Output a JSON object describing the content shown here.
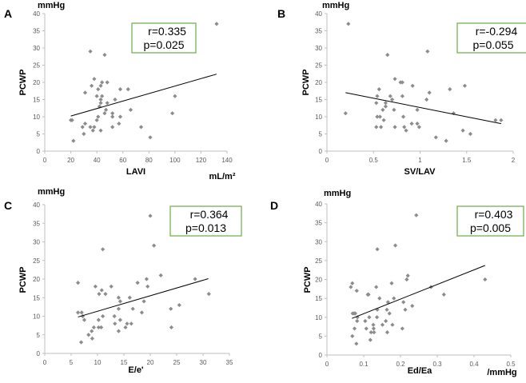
{
  "chart_data": [
    {
      "type": "scatter",
      "panel": "A",
      "y_unit": "mmHg",
      "xlabel": "LAVI",
      "x_unit": "mL/m²",
      "ylabel": "PCWP",
      "xlim": [
        0,
        140
      ],
      "ylim": [
        0,
        40
      ],
      "xticks": [
        "0",
        "20",
        "40",
        "60",
        "80",
        "100",
        "120",
        "140"
      ],
      "yticks": [
        "0",
        "5",
        "10",
        "15",
        "20",
        "25",
        "30",
        "35",
        "40"
      ],
      "stats": {
        "r": "r=0.335",
        "p": "p=0.025"
      },
      "trendline": [
        [
          20,
          10.2
        ],
        [
          132,
          22.4
        ]
      ],
      "points": [
        [
          132,
          37
        ],
        [
          35,
          29
        ],
        [
          46,
          28
        ],
        [
          38,
          21
        ],
        [
          36,
          19
        ],
        [
          44,
          20
        ],
        [
          48,
          20
        ],
        [
          41,
          18
        ],
        [
          43,
          19
        ],
        [
          58,
          18
        ],
        [
          64,
          18
        ],
        [
          31,
          17
        ],
        [
          40,
          16
        ],
        [
          44,
          16
        ],
        [
          100,
          16
        ],
        [
          43,
          15
        ],
        [
          54,
          15
        ],
        [
          43,
          14
        ],
        [
          48,
          14
        ],
        [
          42,
          13
        ],
        [
          47,
          12
        ],
        [
          66,
          12
        ],
        [
          46,
          11
        ],
        [
          52,
          11
        ],
        [
          98,
          11
        ],
        [
          41,
          10
        ],
        [
          52,
          10
        ],
        [
          58,
          10
        ],
        [
          20,
          9
        ],
        [
          21,
          9
        ],
        [
          40,
          9
        ],
        [
          31,
          8
        ],
        [
          57,
          8
        ],
        [
          29,
          7
        ],
        [
          35,
          7
        ],
        [
          38,
          7
        ],
        [
          52,
          7
        ],
        [
          74,
          7
        ],
        [
          37,
          6
        ],
        [
          43,
          6
        ],
        [
          30,
          5
        ],
        [
          81,
          4
        ],
        [
          22,
          3
        ]
      ]
    },
    {
      "type": "scatter",
      "panel": "B",
      "y_unit": "mmHg",
      "xlabel": "SV/LAV",
      "x_unit": "",
      "ylabel": "PCWP",
      "xlim": [
        0,
        2
      ],
      "ylim": [
        0,
        40
      ],
      "xticks": [
        "0",
        "0.5",
        "1",
        "1.5",
        "2"
      ],
      "yticks": [
        "0",
        "5",
        "10",
        "15",
        "20",
        "25",
        "30",
        "35",
        "40"
      ],
      "stats": {
        "r": "r=-0.294",
        "p": "p=0.055"
      },
      "trendline": [
        [
          0.2,
          17
        ],
        [
          1.87,
          8
        ]
      ],
      "points": [
        [
          0.23,
          37
        ],
        [
          1.08,
          29
        ],
        [
          0.65,
          28
        ],
        [
          0.73,
          21
        ],
        [
          0.79,
          20
        ],
        [
          0.81,
          20
        ],
        [
          0.92,
          19
        ],
        [
          1.48,
          19
        ],
        [
          0.56,
          18
        ],
        [
          1.32,
          18
        ],
        [
          1.1,
          17
        ],
        [
          0.54,
          16
        ],
        [
          0.68,
          16
        ],
        [
          0.81,
          16
        ],
        [
          0.7,
          15
        ],
        [
          1.07,
          15
        ],
        [
          0.53,
          14
        ],
        [
          0.63,
          14
        ],
        [
          0.63,
          13
        ],
        [
          0.6,
          12
        ],
        [
          0.72,
          12
        ],
        [
          0.97,
          12
        ],
        [
          0.2,
          11
        ],
        [
          1.36,
          11
        ],
        [
          0.54,
          10
        ],
        [
          0.57,
          10
        ],
        [
          0.82,
          10
        ],
        [
          0.61,
          9
        ],
        [
          1.81,
          9
        ],
        [
          1.87,
          9
        ],
        [
          0.91,
          8
        ],
        [
          0.97,
          8
        ],
        [
          0.53,
          7
        ],
        [
          0.58,
          7
        ],
        [
          0.73,
          7
        ],
        [
          0.83,
          7
        ],
        [
          0.99,
          7
        ],
        [
          0.85,
          6
        ],
        [
          1.46,
          6
        ],
        [
          1.54,
          5
        ],
        [
          1.17,
          4
        ],
        [
          1.28,
          3
        ]
      ]
    },
    {
      "type": "scatter",
      "panel": "C",
      "y_unit": "mmHg",
      "xlabel": "E/e'",
      "x_unit": "",
      "ylabel": "PCWP",
      "xlim": [
        0,
        35
      ],
      "ylim": [
        0,
        40
      ],
      "xticks": [
        "0",
        "5",
        "10",
        "15",
        "20",
        "25",
        "30",
        "35"
      ],
      "yticks": [
        "0",
        "5",
        "10",
        "15",
        "20",
        "25",
        "30",
        "35",
        "40"
      ],
      "stats": {
        "r": "r=0.364",
        "p": "p=0.013"
      },
      "trendline": [
        [
          6.3,
          9.8
        ],
        [
          31,
          20.1
        ]
      ],
      "points": [
        [
          20,
          37
        ],
        [
          20.7,
          29
        ],
        [
          11,
          28
        ],
        [
          22,
          21
        ],
        [
          19.3,
          20
        ],
        [
          28.5,
          20
        ],
        [
          6.3,
          19
        ],
        [
          17.6,
          19
        ],
        [
          9.6,
          18
        ],
        [
          12.6,
          18
        ],
        [
          19.5,
          18
        ],
        [
          10.8,
          17
        ],
        [
          10.3,
          16
        ],
        [
          11.5,
          16
        ],
        [
          31.1,
          16
        ],
        [
          14,
          15
        ],
        [
          16.1,
          15
        ],
        [
          14.3,
          14
        ],
        [
          18.8,
          14
        ],
        [
          14,
          12
        ],
        [
          16.7,
          12
        ],
        [
          23.9,
          12
        ],
        [
          25.5,
          13
        ],
        [
          6.3,
          11
        ],
        [
          7,
          11
        ],
        [
          18.4,
          11
        ],
        [
          7.2,
          10
        ],
        [
          11,
          10
        ],
        [
          13.2,
          10
        ],
        [
          7.5,
          9
        ],
        [
          10.2,
          9
        ],
        [
          14.3,
          9
        ],
        [
          13.3,
          8
        ],
        [
          15.6,
          8
        ],
        [
          16.4,
          8
        ],
        [
          9.3,
          7
        ],
        [
          10.2,
          7
        ],
        [
          10.7,
          7
        ],
        [
          15.3,
          7
        ],
        [
          24,
          7
        ],
        [
          8.9,
          6
        ],
        [
          14,
          6
        ],
        [
          8.3,
          5
        ],
        [
          9,
          4
        ],
        [
          6.9,
          3
        ]
      ]
    },
    {
      "type": "scatter",
      "panel": "D",
      "y_unit": "mmHg",
      "xlabel": "Ed/Ea",
      "x_unit": "/mmHg",
      "ylabel": "PCWP",
      "xlim": [
        0,
        0.5
      ],
      "ylim": [
        0,
        40
      ],
      "xticks": [
        "0",
        "0.1",
        "0.2",
        "0.3",
        "0.4",
        "0.5"
      ],
      "yticks": [
        "0",
        "5",
        "10",
        "15",
        "20",
        "25",
        "30",
        "35",
        "40"
      ],
      "stats": {
        "r": "r=0.403",
        "p": "p=0.005"
      },
      "trendline": [
        [
          0.068,
          9.7
        ],
        [
          0.43,
          23.7
        ]
      ],
      "points": [
        [
          0.243,
          37
        ],
        [
          0.186,
          29
        ],
        [
          0.137,
          28
        ],
        [
          0.22,
          21
        ],
        [
          0.217,
          20
        ],
        [
          0.43,
          20
        ],
        [
          0.069,
          19
        ],
        [
          0.176,
          19
        ],
        [
          0.065,
          18
        ],
        [
          0.134,
          18
        ],
        [
          0.283,
          18
        ],
        [
          0.081,
          17
        ],
        [
          0.111,
          16
        ],
        [
          0.113,
          16
        ],
        [
          0.318,
          16
        ],
        [
          0.143,
          15
        ],
        [
          0.182,
          15
        ],
        [
          0.166,
          14
        ],
        [
          0.208,
          14
        ],
        [
          0.232,
          13
        ],
        [
          0.137,
          12
        ],
        [
          0.163,
          12
        ],
        [
          0.213,
          12
        ],
        [
          0.07,
          11
        ],
        [
          0.074,
          11
        ],
        [
          0.077,
          11
        ],
        [
          0.17,
          11
        ],
        [
          0.083,
          10
        ],
        [
          0.115,
          10
        ],
        [
          0.136,
          10
        ],
        [
          0.082,
          9
        ],
        [
          0.104,
          9
        ],
        [
          0.16,
          9
        ],
        [
          0.126,
          8
        ],
        [
          0.151,
          8
        ],
        [
          0.178,
          8
        ],
        [
          0.075,
          7
        ],
        [
          0.107,
          7
        ],
        [
          0.127,
          7
        ],
        [
          0.205,
          7
        ],
        [
          0.12,
          6
        ],
        [
          0.128,
          6
        ],
        [
          0.164,
          6
        ],
        [
          0.069,
          5
        ],
        [
          0.118,
          4
        ],
        [
          0.08,
          3
        ]
      ]
    }
  ],
  "colors": {
    "marker": "#8c8c8c",
    "axis": "#bfbfbf",
    "stat_box": "#77b255",
    "trend": "#000000"
  }
}
